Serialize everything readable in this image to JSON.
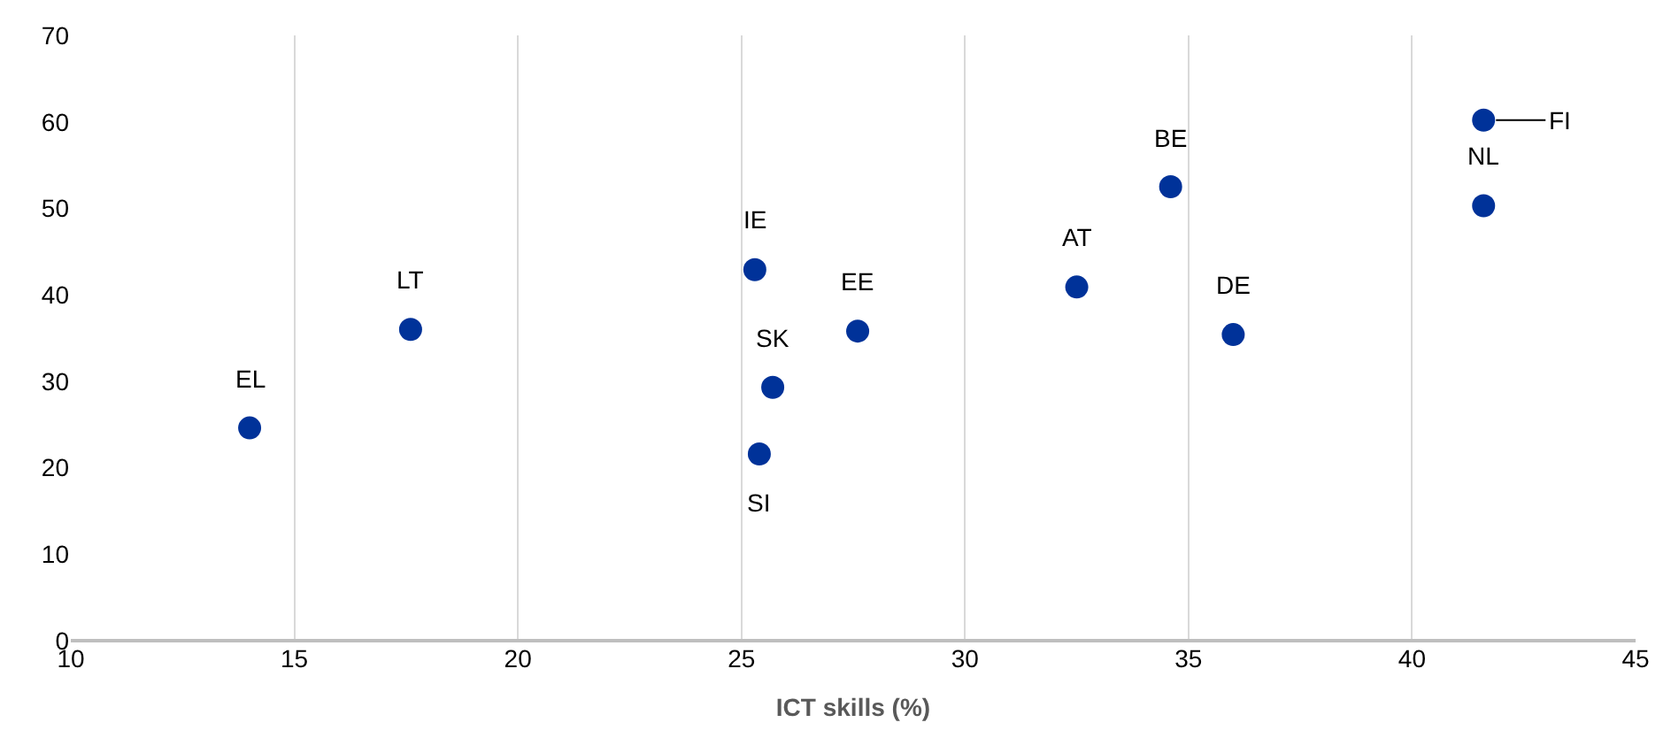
{
  "chart_data": {
    "type": "scatter",
    "xlabel": "ICT skills (%)",
    "x": [
      14.0,
      17.6,
      25.3,
      25.7,
      25.4,
      27.6,
      32.5,
      34.6,
      36.0,
      41.6,
      41.6
    ],
    "series": [
      {
        "color": "#003299",
        "values": [
          24.6,
          36.0,
          42.9,
          29.3,
          21.6,
          35.8,
          40.9,
          52.5,
          35.4,
          50.3,
          60.2
        ]
      }
    ],
    "annotations": [
      {
        "text": "EL",
        "x": 14.0,
        "y": 24.6
      },
      {
        "text": "LT",
        "x": 17.6,
        "y": 36.0
      },
      {
        "text": "IE",
        "x": 25.3,
        "y": 42.9
      },
      {
        "text": "SK",
        "x": 25.7,
        "y": 29.3
      },
      {
        "text": "SI",
        "x": 25.4,
        "y": 21.6
      },
      {
        "text": "EE",
        "x": 27.6,
        "y": 35.8
      },
      {
        "text": "AT",
        "x": 32.5,
        "y": 40.9
      },
      {
        "text": "BE",
        "x": 34.6,
        "y": 52.5
      },
      {
        "text": "DE",
        "x": 36.0,
        "y": 35.4
      },
      {
        "text": "NL",
        "x": 41.6,
        "y": 50.3
      },
      {
        "text": "FI",
        "x": 41.6,
        "y": 60.2
      }
    ],
    "xlim": [
      10,
      45
    ],
    "xticks": [
      10,
      15,
      20,
      25,
      30,
      35,
      40,
      45
    ],
    "ylim": [
      0,
      70
    ],
    "yticks": [
      0,
      10,
      20,
      30,
      40,
      50,
      60,
      70
    ],
    "grid": "x",
    "marker": "circle"
  }
}
